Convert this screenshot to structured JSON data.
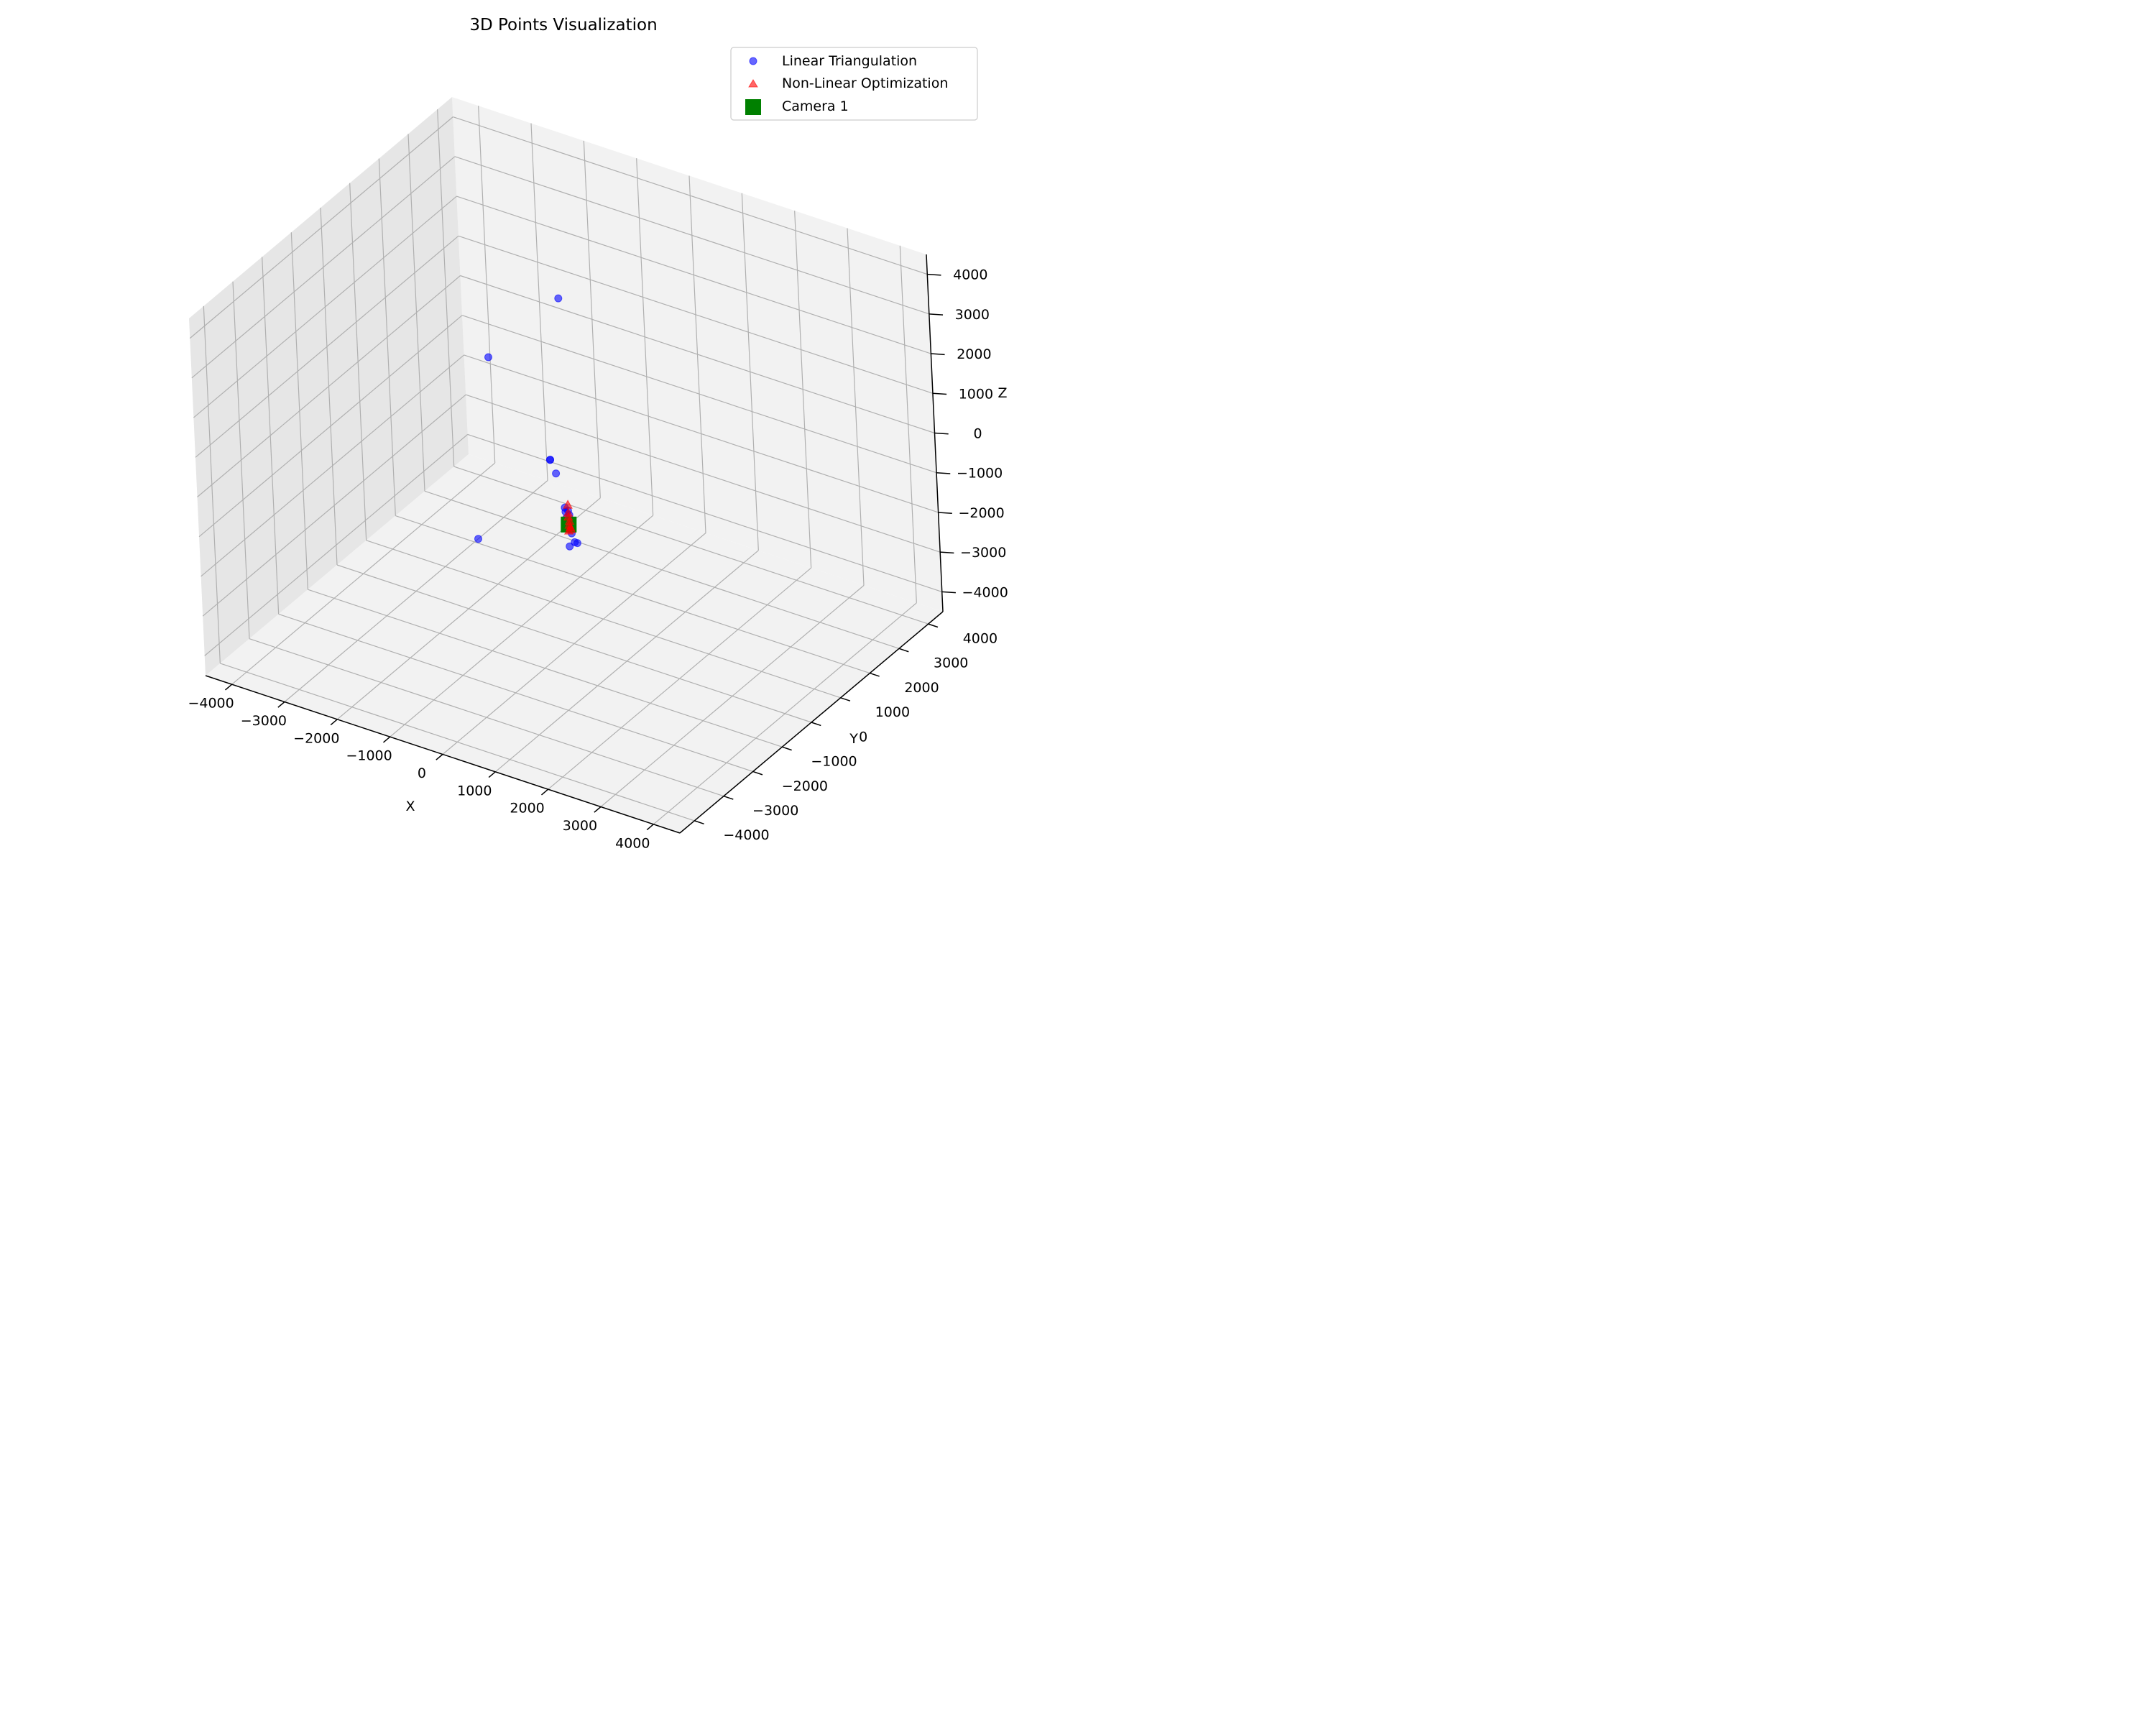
{
  "chart_data": {
    "type": "scatter",
    "projection": "3d",
    "title": "3D Points Visualization",
    "xlabel": "X",
    "ylabel": "Y",
    "zlabel": "Z",
    "xlim": [
      -4500,
      4500
    ],
    "ylim": [
      -4500,
      4500
    ],
    "zlim": [
      -4500,
      4500
    ],
    "ticks": [
      -4000,
      -3000,
      -2000,
      -1000,
      0,
      1000,
      2000,
      3000,
      4000
    ],
    "tick_labels": [
      "−4000",
      "−3000",
      "−2000",
      "−1000",
      "0",
      "1000",
      "2000",
      "3000",
      "4000"
    ],
    "grid": true,
    "legend_position": "top-right",
    "series": [
      {
        "name": "Linear Triangulation",
        "marker": "circle",
        "color": "#0000ff",
        "alpha": 0.6,
        "points": [
          {
            "x": 0,
            "y": 0,
            "z": 4200
          },
          {
            "x": -1400,
            "y": 0,
            "z": 2100
          },
          {
            "x": -300,
            "y": 0,
            "z": 0
          },
          {
            "x": -300,
            "y": 0,
            "z": 0
          },
          {
            "x": -200,
            "y": 0,
            "z": -300
          },
          {
            "x": -60,
            "y": 0,
            "z": -1100
          },
          {
            "x": -50,
            "y": 0,
            "z": -1200
          },
          {
            "x": 0,
            "y": 0,
            "z": -1150
          },
          {
            "x": -40,
            "y": 0,
            "z": -1350
          },
          {
            "x": 20,
            "y": 0,
            "z": -1250
          },
          {
            "x": 0,
            "y": 0,
            "z": -1450
          },
          {
            "x": 30,
            "y": 0,
            "z": -1600
          },
          {
            "x": 50,
            "y": 0,
            "z": -1700
          },
          {
            "x": 100,
            "y": 0,
            "z": -1900
          },
          {
            "x": 150,
            "y": 0,
            "z": -1900
          },
          {
            "x": 0,
            "y": 0,
            "z": -2050
          },
          {
            "x": 0,
            "y": -3000,
            "z": 0
          }
        ]
      },
      {
        "name": "Non-Linear Optimization",
        "marker": "triangle",
        "color": "#ff0000",
        "alpha": 0.6,
        "points": [
          {
            "x": 0,
            "y": 0,
            "z": -1000
          },
          {
            "x": 0,
            "y": 0,
            "z": -1200
          },
          {
            "x": 0,
            "y": 0,
            "z": -1300
          },
          {
            "x": 20,
            "y": 0,
            "z": -1400
          },
          {
            "x": 10,
            "y": 0,
            "z": -1500
          },
          {
            "x": 30,
            "y": 0,
            "z": -1550
          },
          {
            "x": 40,
            "y": 0,
            "z": -1600
          },
          {
            "x": 0,
            "y": 0,
            "z": -1650
          }
        ]
      },
      {
        "name": "Camera 1",
        "marker": "square",
        "color": "#008000",
        "alpha": 1.0,
        "points": [
          {
            "x": 0,
            "y": 0,
            "z": -1500
          }
        ]
      }
    ]
  }
}
